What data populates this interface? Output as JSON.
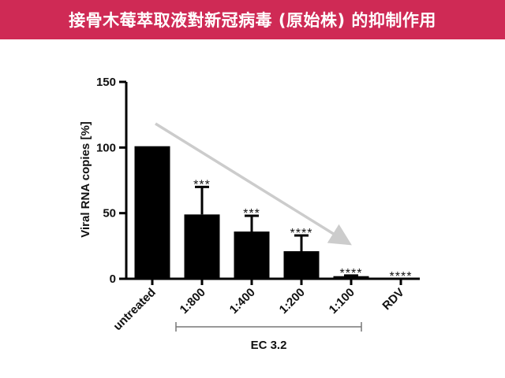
{
  "banner": {
    "title": "接骨木莓萃取液對新冠病毒 (原始株) 的抑制作用",
    "color": "#cf2a55"
  },
  "chart_data": {
    "type": "bar",
    "title": "",
    "ylabel": "Viral RNA copies [%]",
    "xlabel": "",
    "ylim": [
      0,
      150
    ],
    "yticks": [
      0,
      50,
      100,
      150
    ],
    "categories": [
      "untreated",
      "1:800",
      "1:400",
      "1:200",
      "1:100",
      "RDV"
    ],
    "values": [
      101,
      49,
      36,
      21,
      2,
      0
    ],
    "error_upper": [
      0,
      21,
      12,
      12,
      0.5,
      0
    ],
    "significance": [
      "",
      "***",
      "***",
      "****",
      "****",
      "****"
    ],
    "group_bracket": {
      "label": "EC 3.2",
      "categories": [
        "1:800",
        "1:400",
        "1:200",
        "1:100"
      ]
    },
    "annotations": [
      "decreasing-trend-arrow"
    ],
    "bar_color": "#000000",
    "arrow_color": "#cccccc",
    "grid": false
  }
}
